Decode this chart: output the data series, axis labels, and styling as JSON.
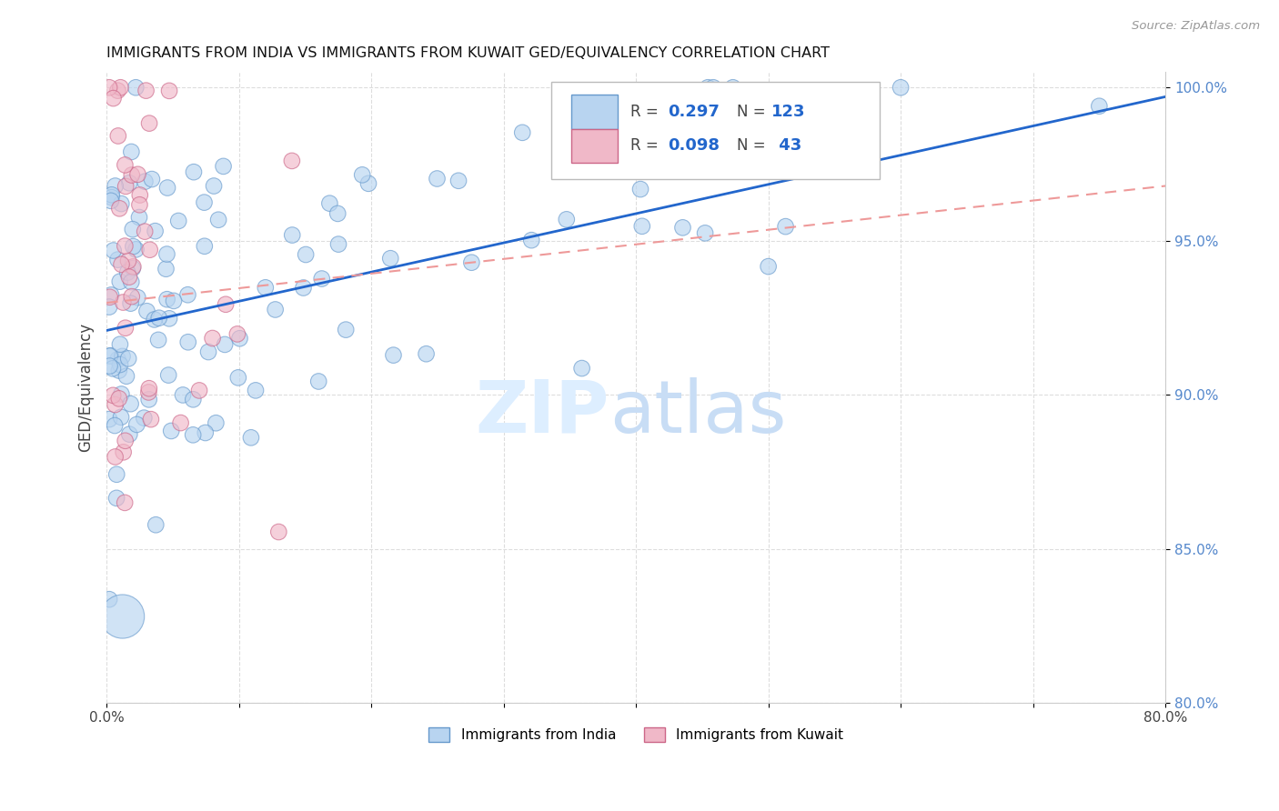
{
  "title": "IMMIGRANTS FROM INDIA VS IMMIGRANTS FROM KUWAIT GED/EQUIVALENCY CORRELATION CHART",
  "source": "Source: ZipAtlas.com",
  "ylabel": "GED/Equivalency",
  "xlim": [
    0.0,
    0.8
  ],
  "ylim": [
    0.8,
    1.005
  ],
  "india_color": "#b8d4f0",
  "kuwait_color": "#f0b8c8",
  "india_edge_color": "#6699cc",
  "kuwait_edge_color": "#cc6688",
  "trend_india_color": "#2266cc",
  "trend_kuwait_color": "#ee9999",
  "trend_india_y0": 0.921,
  "trend_india_y1": 0.997,
  "trend_kuwait_y0": 0.93,
  "trend_kuwait_y1": 0.968
}
